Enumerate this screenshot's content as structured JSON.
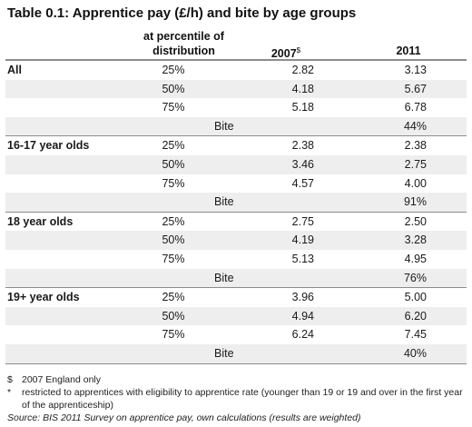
{
  "title": "Table 0.1: Apprentice pay (£/h) and bite by age groups",
  "headers": {
    "percentile_line1": "at percentile of",
    "percentile_line2": "distribution",
    "col_2007": "2007",
    "col_2007_mark": "$",
    "col_2011": "2011"
  },
  "groups": [
    {
      "label": "All",
      "rows": [
        {
          "pct": "25%",
          "v2007": "2.82",
          "v2011": "3.13"
        },
        {
          "pct": "50%",
          "v2007": "4.18",
          "v2011": "5.67"
        },
        {
          "pct": "75%",
          "v2007": "5.18",
          "v2011": "6.78"
        }
      ],
      "bite_label": "Bite",
      "bite": "44%"
    },
    {
      "label": "16-17 year olds",
      "rows": [
        {
          "pct": "25%",
          "v2007": "2.38",
          "v2011": "2.38"
        },
        {
          "pct": "50%",
          "v2007": "3.46",
          "v2011": "2.75"
        },
        {
          "pct": "75%",
          "v2007": "4.57",
          "v2011": "4.00"
        }
      ],
      "bite_label": "Bite",
      "bite": "91%"
    },
    {
      "label": "18 year olds",
      "rows": [
        {
          "pct": "25%",
          "v2007": "2.75",
          "v2011": "2.50"
        },
        {
          "pct": "50%",
          "v2007": "4.19",
          "v2011": "3.28"
        },
        {
          "pct": "75%",
          "v2007": "5.13",
          "v2011": "4.95"
        }
      ],
      "bite_label": "Bite",
      "bite": "76%"
    },
    {
      "label": "19+ year olds",
      "rows": [
        {
          "pct": "25%",
          "v2007": "3.96",
          "v2011": "5.00"
        },
        {
          "pct": "50%",
          "v2007": "4.94",
          "v2011": "6.20"
        },
        {
          "pct": "75%",
          "v2007": "6.24",
          "v2011": "7.45"
        }
      ],
      "bite_label": "Bite",
      "bite": "40%"
    }
  ],
  "notes": [
    {
      "mark": "$",
      "text": "2007 England only"
    },
    {
      "mark": "*",
      "text": "restricted to apprentices with eligibility to apprentice rate (younger than 19 or 19 and over in the first year of the apprenticeship)"
    }
  ],
  "source": "Source: BIS 2011 Survey on apprentice pay, own calculations (results are weighted)"
}
